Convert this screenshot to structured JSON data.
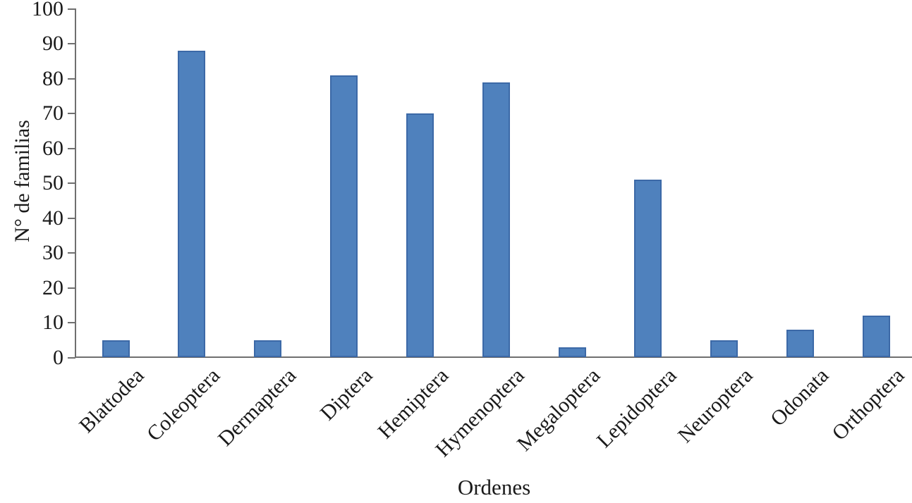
{
  "chart_data": {
    "type": "bar",
    "title": "",
    "xlabel": "Ordenes",
    "ylabel": "N° de familias",
    "categories": [
      "Blattodea",
      "Coleoptera",
      "Dermaptera",
      "Diptera",
      "Hemiptera",
      "Hymenoptera",
      "Megaloptera",
      "Lepidoptera",
      "Neuroptera",
      "Odonata",
      "Orthoptera"
    ],
    "values": [
      5,
      88,
      5,
      81,
      70,
      79,
      3,
      51,
      5,
      8,
      12
    ],
    "ylim": [
      0,
      100
    ],
    "ytick_step": 10,
    "ytick_labels": [
      "0",
      "10",
      "20",
      "30",
      "40",
      "50",
      "60",
      "70",
      "80",
      "90",
      "100"
    ],
    "grid": false,
    "legend_position": "none",
    "bar_fill_color": "#4f81bd",
    "bar_border_color": "#3c69a7",
    "axis_color": "#6f6f6f",
    "text_color": "#1a1a1a",
    "background_color": "#ffffff"
  }
}
